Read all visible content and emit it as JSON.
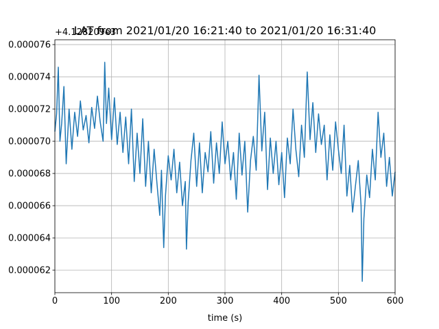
{
  "chart_data": {
    "type": "line",
    "title": "LAT from 2021/01/20 16:21:40 to 2021/01/20 16:31:40",
    "offset_label": "+4.128209e3",
    "xlabel": "time (s)",
    "ylabel": "",
    "xlim": [
      0,
      600
    ],
    "ylim": [
      6.06e-05,
      7.63e-05
    ],
    "grid": true,
    "x_ticks": [
      0,
      100,
      200,
      300,
      400,
      500,
      600
    ],
    "x_tick_labels": [
      "0",
      "100",
      "200",
      "300",
      "400",
      "500",
      "600"
    ],
    "y_ticks": [
      6.2e-05,
      6.4e-05,
      6.6e-05,
      6.8e-05,
      7e-05,
      7.2e-05,
      7.4e-05,
      7.6e-05
    ],
    "y_tick_labels": [
      "0.000062",
      "0.000064",
      "0.000066",
      "0.000068",
      "0.000070",
      "0.000072",
      "0.000074",
      "0.000076"
    ],
    "series": [
      {
        "color": "#1f77b4",
        "x": [
          0,
          3,
          6,
          9,
          12,
          16,
          20,
          25,
          30,
          35,
          40,
          45,
          50,
          55,
          60,
          65,
          70,
          75,
          80,
          85,
          88,
          91,
          95,
          100,
          105,
          110,
          115,
          120,
          125,
          130,
          135,
          140,
          145,
          150,
          155,
          160,
          165,
          170,
          175,
          180,
          185,
          188,
          192,
          195,
          200,
          205,
          210,
          215,
          220,
          225,
          230,
          232,
          235,
          240,
          245,
          250,
          255,
          260,
          265,
          270,
          275,
          280,
          285,
          290,
          295,
          300,
          305,
          310,
          315,
          320,
          325,
          330,
          335,
          340,
          345,
          350,
          355,
          360,
          365,
          370,
          375,
          380,
          385,
          390,
          395,
          400,
          405,
          410,
          415,
          420,
          425,
          430,
          435,
          440,
          445,
          450,
          455,
          460,
          465,
          470,
          475,
          480,
          485,
          490,
          495,
          500,
          505,
          510,
          515,
          520,
          525,
          530,
          535,
          540,
          542,
          545,
          550,
          555,
          560,
          565,
          570,
          575,
          580,
          585,
          590,
          595,
          600
        ],
        "y": [
          7.06e-05,
          7.17e-05,
          7.46e-05,
          7e-05,
          7.11e-05,
          7.34e-05,
          6.86e-05,
          7.2e-05,
          6.95e-05,
          7.18e-05,
          7.03e-05,
          7.25e-05,
          7.07e-05,
          7.16e-05,
          6.99e-05,
          7.21e-05,
          7.08e-05,
          7.28e-05,
          7.12e-05,
          7e-05,
          7.49e-05,
          7.11e-05,
          7.33e-05,
          7.01e-05,
          7.27e-05,
          6.98e-05,
          7.18e-05,
          6.93e-05,
          7.15e-05,
          6.86e-05,
          7.2e-05,
          6.75e-05,
          7.05e-05,
          6.8e-05,
          7.14e-05,
          6.72e-05,
          7e-05,
          6.68e-05,
          6.95e-05,
          6.74e-05,
          6.54e-05,
          6.82e-05,
          6.34e-05,
          6.66e-05,
          6.91e-05,
          6.76e-05,
          6.95e-05,
          6.68e-05,
          6.87e-05,
          6.6e-05,
          6.75e-05,
          6.33e-05,
          6.62e-05,
          6.88e-05,
          7.05e-05,
          6.72e-05,
          6.99e-05,
          6.68e-05,
          6.93e-05,
          6.81e-05,
          7.06e-05,
          6.74e-05,
          6.99e-05,
          6.8e-05,
          7.12e-05,
          6.86e-05,
          7e-05,
          6.76e-05,
          6.93e-05,
          6.64e-05,
          7.05e-05,
          6.79e-05,
          7e-05,
          6.56e-05,
          6.88e-05,
          7.03e-05,
          6.82e-05,
          7.41e-05,
          6.94e-05,
          7.18e-05,
          6.7e-05,
          7.02e-05,
          6.8e-05,
          7e-05,
          6.73e-05,
          6.93e-05,
          6.65e-05,
          7.02e-05,
          6.86e-05,
          7.2e-05,
          6.95e-05,
          6.78e-05,
          7.1e-05,
          6.9e-05,
          7.43e-05,
          7.01e-05,
          7.24e-05,
          6.93e-05,
          7.17e-05,
          6.98e-05,
          7.1e-05,
          6.76e-05,
          7.04e-05,
          6.82e-05,
          7.12e-05,
          6.95e-05,
          6.8e-05,
          7.1e-05,
          6.66e-05,
          6.85e-05,
          6.56e-05,
          6.72e-05,
          6.88e-05,
          6.6e-05,
          6.13e-05,
          6.52e-05,
          6.79e-05,
          6.65e-05,
          6.95e-05,
          6.76e-05,
          7.18e-05,
          6.9e-05,
          7.05e-05,
          6.72e-05,
          6.9e-05,
          6.66e-05,
          6.81e-05
        ]
      }
    ]
  }
}
